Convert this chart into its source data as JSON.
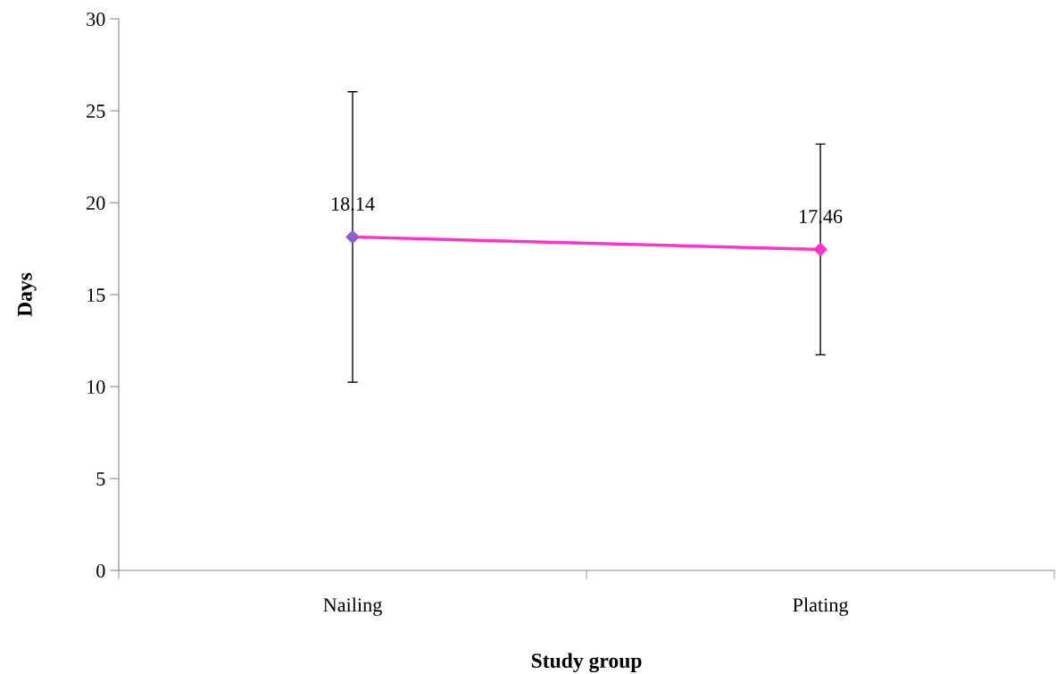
{
  "chart_data": {
    "type": "line",
    "xlabel": "Study group",
    "ylabel": "Days",
    "categories": [
      "Nailing",
      "Plating"
    ],
    "series": [
      {
        "color": "#ff33cc",
        "colors": [
          "#8e5ed0",
          "#ff33cc"
        ],
        "values": [
          18.14,
          17.46
        ],
        "errors": [
          7.9,
          5.73
        ]
      }
    ],
    "ylim": [
      0,
      30
    ],
    "yticks": [
      0,
      5,
      10,
      15,
      20,
      25,
      30
    ],
    "grid": false,
    "legend": false,
    "marker": "diamond",
    "data_labels": true
  }
}
